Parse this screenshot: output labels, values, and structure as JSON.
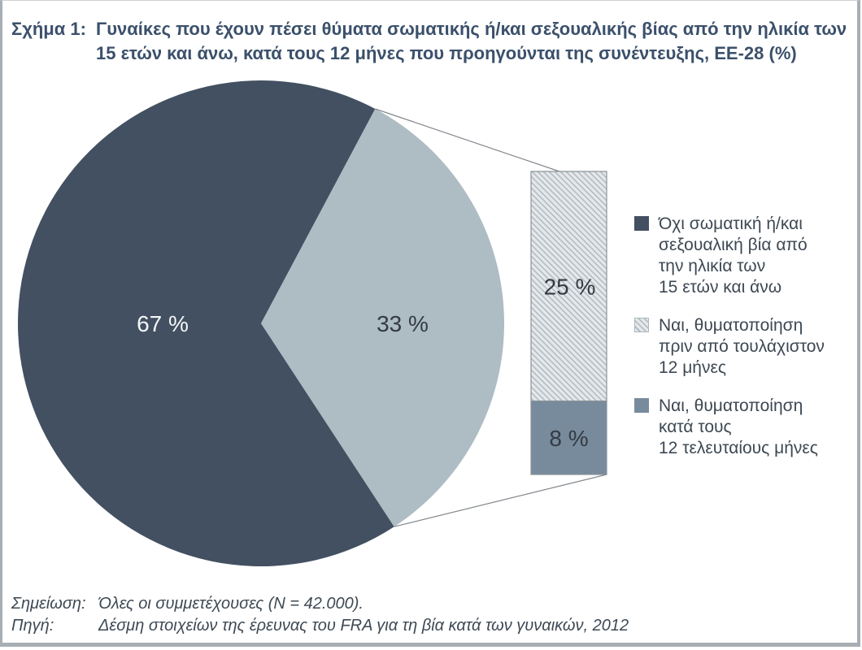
{
  "figure": {
    "label": "Σχήμα 1:",
    "title_line1": "Γυναίκες που έχουν πέσει θύματα σωματικής ή/και σεξουαλικής βίας από την ηλικία των",
    "title_line2": "15 ετών και άνω, κατά τους 12 μήνες που προηγούνται της συνέντευξης, ΕΕ-28 (%)"
  },
  "chart_data": {
    "type": "pie",
    "subtype": "pie-of-pie",
    "title": "Γυναίκες που έχουν πέσει θύματα σωματικής ή/και σεξουαλικής βίας από την ηλικία των 15 ετών και άνω, κατά τους 12 μήνες που προηγούνται της συνέντευξης, ΕΕ-28 (%)",
    "units": "%",
    "legend_position": "right",
    "pie": {
      "slices": [
        {
          "label": "Όχι σωματική ή/και σεξουαλική βία από την ηλικία των 15 ετών και άνω",
          "value": 67,
          "display": "67 %",
          "color": "#425061"
        },
        {
          "label": "",
          "value": 33,
          "display": "33 %",
          "color": "#aebcc4"
        }
      ]
    },
    "bar_breakdown": [
      {
        "label": "Ναι, θυματοποίηση πριν από τουλάχιστον 12 μήνες",
        "value": 25,
        "display": "25 %",
        "pattern": "diagonal-hatch"
      },
      {
        "label": "Ναι, θυματοποίηση κατά τους 12 τελευταίους μήνες",
        "value": 8,
        "display": "8 %",
        "color": "#788b9d"
      }
    ]
  },
  "legend": {
    "items": [
      {
        "swatch": "dark-solid",
        "lines": [
          "Όχι σωματική ή/και",
          "σεξουαλική βία από",
          "την ηλικία των",
          "15 ετών και άνω"
        ]
      },
      {
        "swatch": "hatched",
        "lines": [
          "Ναι, θυματοποίηση",
          "πριν από τουλάχιστον",
          "12 μήνες"
        ]
      },
      {
        "swatch": "gray-solid",
        "lines": [
          "Ναι, θυματοποίηση",
          "κατά τους",
          "12 τελευταίους μήνες"
        ]
      }
    ]
  },
  "notes": {
    "note_label": "Σημείωση:",
    "note_text": "Όλες οι συμμετέχουσες (N = 42.000).",
    "source_label": "Πηγή:",
    "source_text": "Δέσμη στοιχείων της έρευνας του FRA για τη βία κατά των γυναικών, 2012"
  },
  "colors": {
    "dark_slate": "#425061",
    "light_slice": "#aebcc4",
    "bar_solid": "#788b9d",
    "hatch_bg": "#e4e8ea",
    "hatch_line": "#adb7be",
    "bar_border": "#8b9298",
    "connector": "#83888d",
    "percent_on_dark": "#f4f6f8",
    "percent_dark": "#333b43",
    "title_text": "#3b506b",
    "body_text": "#3d4853",
    "page_border": "#a7aeb4"
  }
}
